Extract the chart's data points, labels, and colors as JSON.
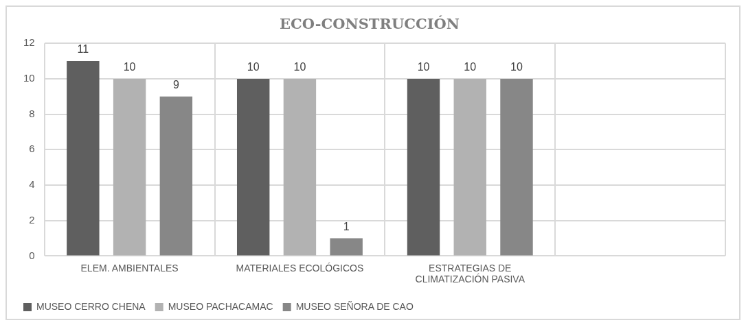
{
  "chart_data": {
    "type": "bar",
    "title": "ECO-CONSTRUCCIÓN",
    "categories": [
      "ELEM. AMBIENTALES",
      "MATERIALES ECOLÓGICOS",
      "ESTRATEGIAS DE CLIMATIZACIÓN PASIVA",
      null
    ],
    "series": [
      {
        "name": "MUSEO CERRO CHENA",
        "color": "#5f5f5f",
        "values": [
          11,
          10,
          10,
          null
        ]
      },
      {
        "name": "MUSEO PACHACAMAC",
        "color": "#b2b2b2",
        "values": [
          10,
          10,
          10,
          null
        ]
      },
      {
        "name": "MUSEO SEÑORA DE CAO",
        "color": "#878787",
        "values": [
          9,
          1,
          10,
          null
        ]
      }
    ],
    "ylim": [
      0,
      12
    ],
    "yticks": [
      0,
      2,
      4,
      6,
      8,
      10,
      12
    ],
    "grid": true,
    "legend": "bottom left",
    "data_labels": true
  }
}
